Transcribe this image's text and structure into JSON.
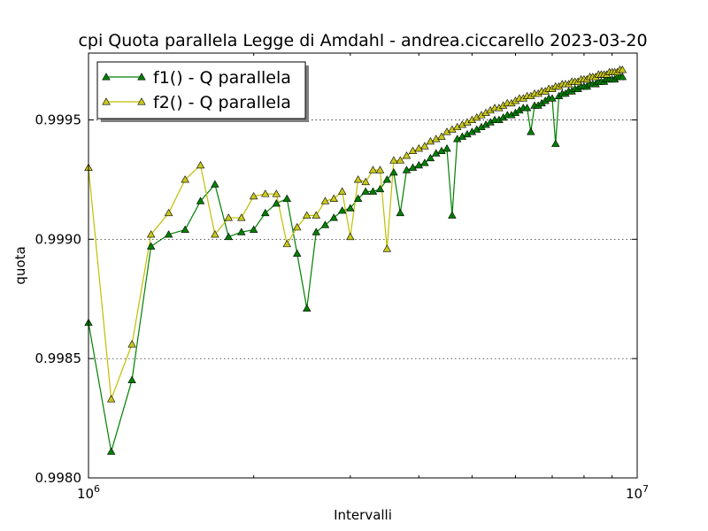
{
  "chart_data": {
    "type": "line",
    "title": "cpi Quota parallela Legge di Amdahl - andrea.ciccarello 2023-03-20",
    "xlabel": "Intervalli",
    "ylabel": "quota",
    "x_scale": "log",
    "xlim": [
      1000000,
      10000000
    ],
    "ylim": [
      0.998,
      0.99978
    ],
    "x_ticks": [
      {
        "value": 1000000,
        "base": "10",
        "exp": "6"
      },
      {
        "value": 10000000,
        "base": "10",
        "exp": "7"
      }
    ],
    "y_ticks": [
      {
        "value": 0.998,
        "label": "0.9980"
      },
      {
        "value": 0.9985,
        "label": "0.9985"
      },
      {
        "value": 0.999,
        "label": "0.9990"
      },
      {
        "value": 0.9995,
        "label": "0.9995"
      }
    ],
    "grid": true,
    "legend_position": "top-left",
    "series": [
      {
        "name": "f1() - Q parallela",
        "line_color": "#008000",
        "marker_color": "#008000",
        "marker": "triangle",
        "points": [
          [
            1000000,
            0.99865
          ],
          [
            1100000,
            0.99811
          ],
          [
            1200000,
            0.99841
          ],
          [
            1300000,
            0.99897
          ],
          [
            1400000,
            0.99902
          ],
          [
            1500000,
            0.99904
          ],
          [
            1600000,
            0.99916
          ],
          [
            1700000,
            0.99923
          ],
          [
            1800000,
            0.99901
          ],
          [
            1900000,
            0.99903
          ],
          [
            2000000,
            0.99904
          ],
          [
            2100000,
            0.99911
          ],
          [
            2200000,
            0.99915
          ],
          [
            2300000,
            0.99917
          ],
          [
            2400000,
            0.99894
          ],
          [
            2500000,
            0.99871
          ],
          [
            2600000,
            0.99903
          ],
          [
            2700000,
            0.99906
          ],
          [
            2800000,
            0.99909
          ],
          [
            2900000,
            0.99912
          ],
          [
            3000000,
            0.99913
          ],
          [
            3100000,
            0.99917
          ],
          [
            3200000,
            0.9992
          ],
          [
            3300000,
            0.9992
          ],
          [
            3400000,
            0.99921
          ],
          [
            3500000,
            0.99925
          ],
          [
            3600000,
            0.99928
          ],
          [
            3700000,
            0.99911
          ],
          [
            3800000,
            0.99929
          ],
          [
            3900000,
            0.9993
          ],
          [
            4000000,
            0.99931
          ],
          [
            4100000,
            0.99932
          ],
          [
            4200000,
            0.99934
          ],
          [
            4300000,
            0.99936
          ],
          [
            4400000,
            0.99937
          ],
          [
            4500000,
            0.99938
          ],
          [
            4600000,
            0.9991
          ],
          [
            4700000,
            0.99942
          ],
          [
            4800000,
            0.99943
          ],
          [
            4900000,
            0.99944
          ],
          [
            5000000,
            0.99945
          ],
          [
            5100000,
            0.99946
          ],
          [
            5200000,
            0.99947
          ],
          [
            5300000,
            0.99948
          ],
          [
            5400000,
            0.99949
          ],
          [
            5500000,
            0.9995
          ],
          [
            5600000,
            0.9995
          ],
          [
            5700000,
            0.99951
          ],
          [
            5800000,
            0.99952
          ],
          [
            5900000,
            0.99952
          ],
          [
            6000000,
            0.99953
          ],
          [
            6100000,
            0.99954
          ],
          [
            6200000,
            0.99955
          ],
          [
            6300000,
            0.99955
          ],
          [
            6400000,
            0.99945
          ],
          [
            6500000,
            0.99956
          ],
          [
            6600000,
            0.99956
          ],
          [
            6700000,
            0.99957
          ],
          [
            6800000,
            0.99958
          ],
          [
            6900000,
            0.99959
          ],
          [
            7000000,
            0.99959
          ],
          [
            7100000,
            0.9994
          ],
          [
            7200000,
            0.9996
          ],
          [
            7300000,
            0.99961
          ],
          [
            7400000,
            0.99961
          ],
          [
            7500000,
            0.99962
          ],
          [
            7600000,
            0.99962
          ],
          [
            7700000,
            0.99963
          ],
          [
            7800000,
            0.99963
          ],
          [
            7900000,
            0.99964
          ],
          [
            8000000,
            0.99964
          ],
          [
            8100000,
            0.99964
          ],
          [
            8200000,
            0.99965
          ],
          [
            8300000,
            0.99965
          ],
          [
            8400000,
            0.99965
          ],
          [
            8500000,
            0.99966
          ],
          [
            8600000,
            0.99966
          ],
          [
            8700000,
            0.99966
          ],
          [
            8800000,
            0.99967
          ],
          [
            8900000,
            0.99967
          ],
          [
            9000000,
            0.99967
          ],
          [
            9100000,
            0.99967
          ],
          [
            9200000,
            0.99968
          ],
          [
            9300000,
            0.99968
          ],
          [
            9400000,
            0.99968
          ]
        ]
      },
      {
        "name": "f2() - Q parallela",
        "line_color": "#bfbf00",
        "marker_color": "#c8c81e",
        "marker": "triangle",
        "points": [
          [
            1000000,
            0.9993
          ],
          [
            1100000,
            0.99833
          ],
          [
            1200000,
            0.99856
          ],
          [
            1300000,
            0.99902
          ],
          [
            1400000,
            0.99911
          ],
          [
            1500000,
            0.99925
          ],
          [
            1600000,
            0.99931
          ],
          [
            1700000,
            0.99902
          ],
          [
            1800000,
            0.99909
          ],
          [
            1900000,
            0.99909
          ],
          [
            2000000,
            0.99918
          ],
          [
            2100000,
            0.99919
          ],
          [
            2200000,
            0.99919
          ],
          [
            2300000,
            0.99898
          ],
          [
            2400000,
            0.99905
          ],
          [
            2500000,
            0.9991
          ],
          [
            2600000,
            0.9991
          ],
          [
            2700000,
            0.99916
          ],
          [
            2800000,
            0.99917
          ],
          [
            2900000,
            0.9992
          ],
          [
            3000000,
            0.99901
          ],
          [
            3100000,
            0.99925
          ],
          [
            3200000,
            0.99924
          ],
          [
            3300000,
            0.99929
          ],
          [
            3400000,
            0.99929
          ],
          [
            3500000,
            0.99896
          ],
          [
            3600000,
            0.99933
          ],
          [
            3700000,
            0.99933
          ],
          [
            3800000,
            0.99935
          ],
          [
            3900000,
            0.99937
          ],
          [
            4000000,
            0.99938
          ],
          [
            4100000,
            0.99939
          ],
          [
            4200000,
            0.99941
          ],
          [
            4300000,
            0.99942
          ],
          [
            4400000,
            0.99943
          ],
          [
            4500000,
            0.99945
          ],
          [
            4600000,
            0.99946
          ],
          [
            4700000,
            0.99947
          ],
          [
            4800000,
            0.99948
          ],
          [
            4900000,
            0.99949
          ],
          [
            5000000,
            0.9995
          ],
          [
            5100000,
            0.99951
          ],
          [
            5200000,
            0.99952
          ],
          [
            5300000,
            0.99953
          ],
          [
            5400000,
            0.99954
          ],
          [
            5500000,
            0.99955
          ],
          [
            5600000,
            0.99955
          ],
          [
            5700000,
            0.99956
          ],
          [
            5800000,
            0.99957
          ],
          [
            5900000,
            0.99957
          ],
          [
            6000000,
            0.99958
          ],
          [
            6100000,
            0.99959
          ],
          [
            6200000,
            0.99959
          ],
          [
            6300000,
            0.9996
          ],
          [
            6400000,
            0.9996
          ],
          [
            6500000,
            0.99961
          ],
          [
            6600000,
            0.99961
          ],
          [
            6700000,
            0.99962
          ],
          [
            6800000,
            0.99962
          ],
          [
            6900000,
            0.99963
          ],
          [
            7000000,
            0.99963
          ],
          [
            7100000,
            0.99964
          ],
          [
            7200000,
            0.99964
          ],
          [
            7300000,
            0.99965
          ],
          [
            7400000,
            0.99965
          ],
          [
            7500000,
            0.99965
          ],
          [
            7600000,
            0.99966
          ],
          [
            7700000,
            0.99966
          ],
          [
            7800000,
            0.99966
          ],
          [
            7900000,
            0.99967
          ],
          [
            8000000,
            0.99967
          ],
          [
            8100000,
            0.99967
          ],
          [
            8200000,
            0.99968
          ],
          [
            8300000,
            0.99968
          ],
          [
            8400000,
            0.99968
          ],
          [
            8500000,
            0.99969
          ],
          [
            8600000,
            0.99969
          ],
          [
            8700000,
            0.99969
          ],
          [
            8800000,
            0.99969
          ],
          [
            8900000,
            0.9997
          ],
          [
            9000000,
            0.9997
          ],
          [
            9100000,
            0.9997
          ],
          [
            9200000,
            0.9997
          ],
          [
            9300000,
            0.99971
          ],
          [
            9400000,
            0.99971
          ]
        ]
      }
    ]
  }
}
